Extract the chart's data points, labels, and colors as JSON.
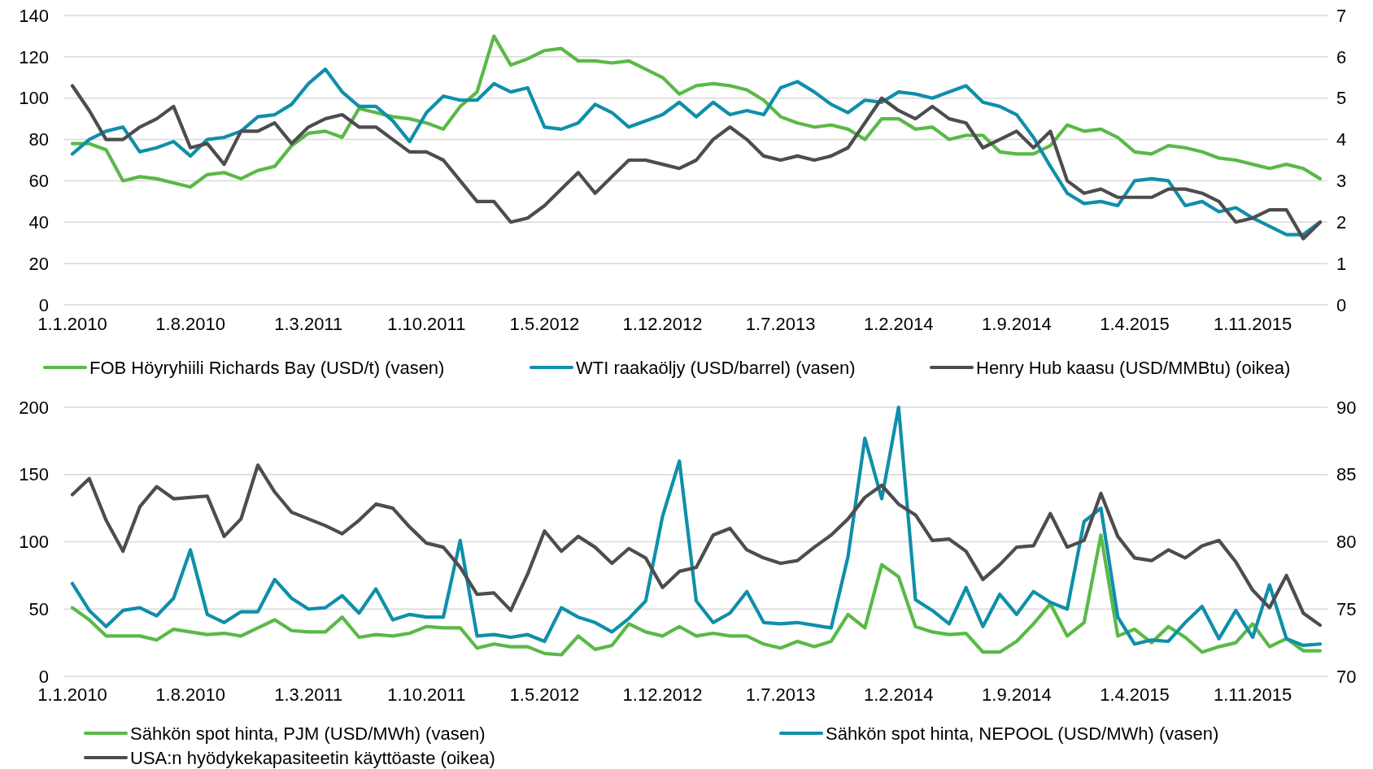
{
  "chart_data": [
    {
      "type": "line",
      "categories": [
        "1.1.2010",
        null,
        null,
        null,
        null,
        null,
        null,
        "1.8.2010",
        null,
        null,
        null,
        null,
        null,
        null,
        "1.3.2011",
        null,
        null,
        null,
        null,
        null,
        null,
        "1.10.2011",
        null,
        null,
        null,
        null,
        null,
        null,
        "1.5.2012",
        null,
        null,
        null,
        null,
        null,
        null,
        "1.12.2012",
        null,
        null,
        null,
        null,
        null,
        null,
        "1.7.2013",
        null,
        null,
        null,
        null,
        null,
        null,
        "1.2.2014",
        null,
        null,
        null,
        null,
        null,
        null,
        "1.9.2014",
        null,
        null,
        null,
        null,
        null,
        null,
        "1.4.2015",
        null,
        null,
        null,
        null,
        null,
        null,
        "1.11.2015",
        null,
        null,
        null,
        null
      ],
      "series": [
        {
          "name": "FOB Höyryhiili Richards Bay (USD/t) (vasen)",
          "color": "#5ab947",
          "values": [
            78,
            78,
            75,
            60,
            62,
            61,
            59,
            57,
            63,
            64,
            61,
            65,
            67,
            77,
            83,
            84,
            81,
            95,
            93,
            91,
            90,
            88,
            85,
            96,
            103,
            130,
            116,
            119,
            123,
            124,
            118,
            118,
            117,
            118,
            114,
            110,
            102,
            106,
            107,
            106,
            104,
            99,
            91,
            88,
            86,
            87,
            85,
            80,
            90,
            90,
            85,
            86,
            80,
            82,
            82,
            74,
            73,
            73,
            77,
            87,
            84,
            85,
            81,
            74,
            73,
            77,
            76,
            74,
            71,
            70,
            68,
            66,
            68,
            66,
            61
          ]
        },
        {
          "name": "WTI raakaöljy (USD/barrel) (vasen)",
          "color": "#0f8fa9",
          "values": [
            73,
            80,
            84,
            86,
            74,
            76,
            79,
            72,
            80,
            81,
            84,
            91,
            92,
            97,
            107,
            114,
            103,
            96,
            96,
            89,
            79,
            93,
            101,
            99,
            99,
            107,
            103,
            105,
            86,
            85,
            88,
            97,
            93,
            86,
            89,
            92,
            98,
            91,
            98,
            92,
            94,
            92,
            105,
            108,
            103,
            97,
            93,
            99,
            98,
            103,
            102,
            100,
            103,
            106,
            98,
            96,
            92,
            81,
            67,
            54,
            49,
            50,
            48,
            60,
            61,
            60,
            48,
            50,
            45,
            47,
            42,
            38,
            34,
            34,
            40
          ]
        },
        {
          "name": "Henry Hub kaasu (USD/MMBtu) (oikea)",
          "color": "#4d4d4f",
          "axis": "y2",
          "values": [
            5.3,
            4.7,
            4.0,
            4.0,
            4.3,
            4.5,
            4.8,
            3.8,
            3.9,
            3.4,
            4.2,
            4.2,
            4.4,
            3.9,
            4.3,
            4.5,
            4.6,
            4.3,
            4.3,
            4.0,
            3.7,
            3.7,
            3.5,
            3.0,
            2.5,
            2.5,
            2.0,
            2.1,
            2.4,
            2.8,
            3.2,
            2.7,
            3.1,
            3.5,
            3.5,
            3.4,
            3.3,
            3.5,
            4.0,
            4.3,
            4.0,
            3.6,
            3.5,
            3.6,
            3.5,
            3.6,
            3.8,
            4.4,
            5.0,
            4.7,
            4.5,
            4.8,
            4.5,
            4.4,
            3.8,
            4.0,
            4.2,
            3.8,
            4.2,
            3.0,
            2.7,
            2.8,
            2.6,
            2.6,
            2.6,
            2.8,
            2.8,
            2.7,
            2.5,
            2.0,
            2.1,
            2.3,
            2.3,
            1.6,
            2.0
          ]
        }
      ],
      "ylim": [
        0,
        140
      ],
      "yticks": [
        0,
        20,
        40,
        60,
        80,
        100,
        120,
        140
      ],
      "y2lim": [
        0,
        7
      ],
      "y2ticks": [
        0,
        1,
        2,
        3,
        4,
        5,
        6,
        7
      ],
      "grid": "y",
      "legend": "bottom"
    },
    {
      "type": "line",
      "categories": [
        "1.1.2010",
        null,
        null,
        null,
        null,
        null,
        null,
        "1.8.2010",
        null,
        null,
        null,
        null,
        null,
        null,
        "1.3.2011",
        null,
        null,
        null,
        null,
        null,
        null,
        "1.10.2011",
        null,
        null,
        null,
        null,
        null,
        null,
        "1.5.2012",
        null,
        null,
        null,
        null,
        null,
        null,
        "1.12.2012",
        null,
        null,
        null,
        null,
        null,
        null,
        "1.7.2013",
        null,
        null,
        null,
        null,
        null,
        null,
        "1.2.2014",
        null,
        null,
        null,
        null,
        null,
        null,
        "1.9.2014",
        null,
        null,
        null,
        null,
        null,
        null,
        "1.4.2015",
        null,
        null,
        null,
        null,
        null,
        null,
        "1.11.2015",
        null,
        null,
        null,
        null
      ],
      "series": [
        {
          "name": "Sähkön spot hinta, PJM (USD/MWh) (vasen)",
          "color": "#5ab947",
          "values": [
            51,
            42,
            30,
            30,
            30,
            27,
            35,
            33,
            31,
            32,
            30,
            36,
            42,
            34,
            33,
            33,
            44,
            29,
            31,
            30,
            32,
            37,
            36,
            36,
            21,
            24,
            22,
            22,
            17,
            16,
            30,
            20,
            23,
            39,
            33,
            30,
            37,
            30,
            32,
            30,
            30,
            24,
            21,
            26,
            22,
            26,
            46,
            36,
            83,
            74,
            37,
            33,
            31,
            32,
            18,
            18,
            26,
            39,
            54,
            30,
            40,
            105,
            30,
            35,
            25,
            37,
            29,
            18,
            22,
            25,
            39,
            22,
            28,
            19,
            19
          ]
        },
        {
          "name": "Sähkön spot hinta, NEPOOL (USD/MWh) (vasen)",
          "color": "#0f8fa9",
          "values": [
            69,
            49,
            37,
            49,
            51,
            45,
            58,
            94,
            46,
            40,
            48,
            48,
            72,
            58,
            50,
            51,
            60,
            47,
            65,
            42,
            46,
            44,
            44,
            101,
            30,
            31,
            29,
            31,
            26,
            51,
            44,
            40,
            33,
            43,
            56,
            119,
            160,
            56,
            40,
            47,
            63,
            40,
            39,
            40,
            38,
            36,
            89,
            177,
            132,
            200,
            57,
            49,
            39,
            66,
            37,
            61,
            46,
            63,
            55,
            50,
            115,
            125,
            44,
            24,
            27,
            26,
            40,
            52,
            28,
            49,
            29,
            68,
            28,
            23,
            24
          ]
        },
        {
          "name": "USA:n hyödykekapasiteetin käyttöaste (oikea)",
          "color": "#4d4d4f",
          "axis": "y2",
          "values": [
            83.5,
            84.7,
            81.6,
            79.3,
            82.6,
            84.1,
            83.2,
            83.3,
            83.4,
            80.4,
            81.7,
            85.7,
            83.7,
            82.2,
            81.7,
            81.2,
            80.6,
            81.6,
            82.8,
            82.5,
            81.1,
            79.9,
            79.6,
            78.1,
            76.1,
            76.2,
            74.9,
            77.6,
            80.8,
            79.3,
            80.4,
            79.6,
            78.4,
            79.5,
            78.8,
            76.6,
            77.8,
            78.1,
            80.5,
            81.0,
            79.4,
            78.8,
            78.4,
            78.6,
            79.6,
            80.5,
            81.7,
            83.3,
            84.2,
            82.8,
            82.0,
            80.1,
            80.2,
            79.3,
            77.2,
            78.3,
            79.6,
            79.7,
            82.1,
            79.6,
            80.1,
            83.6,
            80.4,
            78.8,
            78.6,
            79.4,
            78.8,
            79.7,
            80.1,
            78.5,
            76.4,
            75.1,
            77.5,
            74.7,
            73.8
          ]
        }
      ],
      "ylim": [
        0,
        200
      ],
      "yticks": [
        0,
        50,
        100,
        150,
        200
      ],
      "y2lim": [
        70,
        90
      ],
      "y2ticks": [
        70,
        75,
        80,
        85,
        90
      ],
      "grid": "y",
      "legend": "bottom"
    }
  ]
}
